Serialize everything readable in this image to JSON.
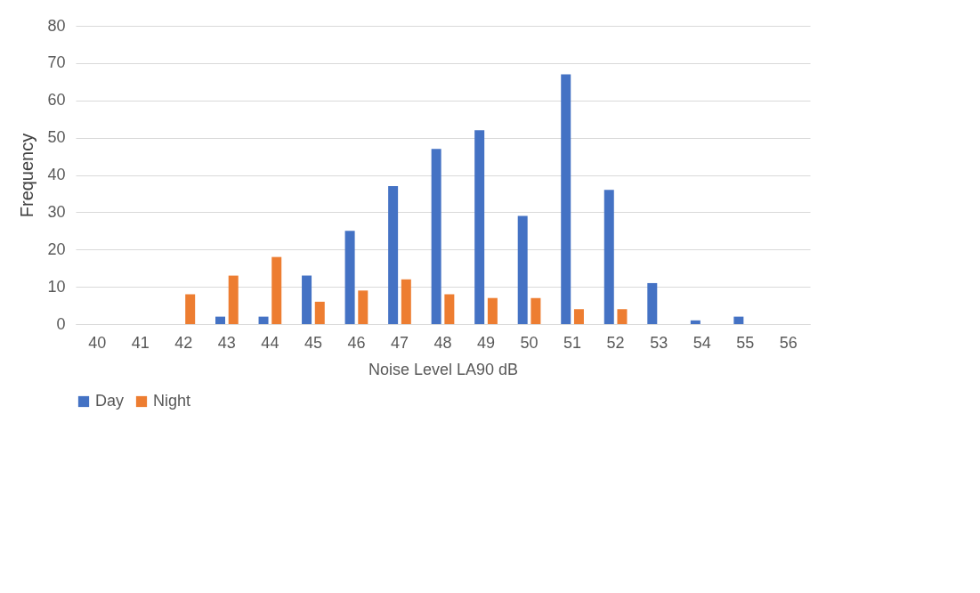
{
  "chart_data": {
    "type": "bar",
    "xlabel": "Noise Level LA90 dB",
    "ylabel": "Frequency",
    "categories": [
      "40",
      "41",
      "42",
      "43",
      "44",
      "45",
      "46",
      "47",
      "48",
      "49",
      "50",
      "51",
      "52",
      "53",
      "54",
      "55",
      "56"
    ],
    "series": [
      {
        "name": "Day",
        "color": "#4472c4",
        "values": [
          0,
          0,
          0,
          2,
          2,
          13,
          25,
          37,
          47,
          52,
          29,
          67,
          36,
          11,
          1,
          2,
          0
        ]
      },
      {
        "name": "Night",
        "color": "#ed7d31",
        "values": [
          0,
          0,
          8,
          13,
          18,
          6,
          9,
          12,
          8,
          7,
          7,
          4,
          4,
          0,
          0,
          0,
          0
        ]
      }
    ],
    "ylim": [
      0,
      80
    ],
    "yticks": [
      0,
      10,
      20,
      30,
      40,
      50,
      60,
      70,
      80
    ],
    "grid": "y",
    "legend": "bottom"
  }
}
